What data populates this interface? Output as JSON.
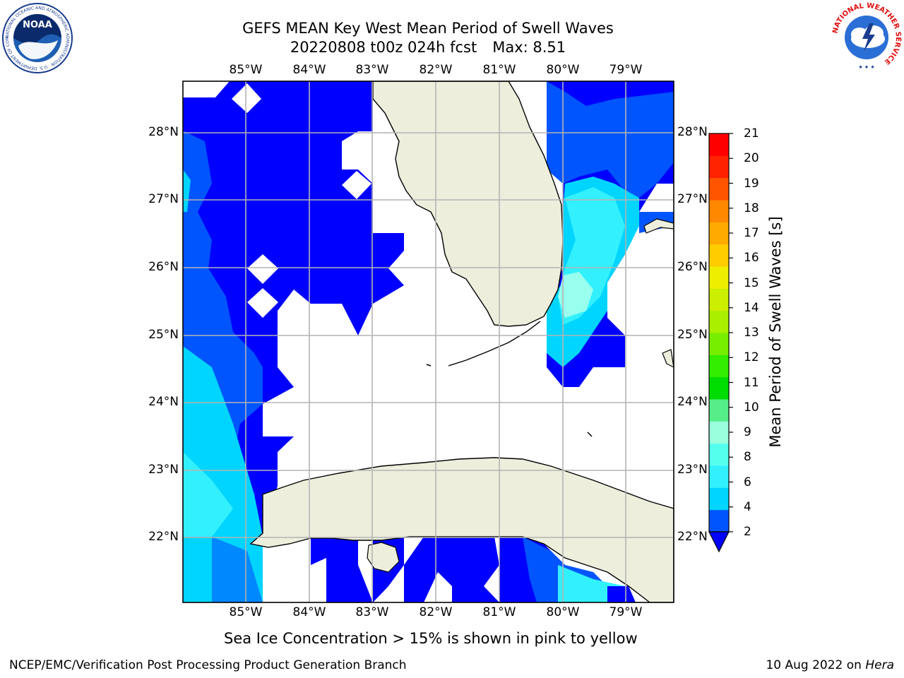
{
  "title": {
    "line1": "GEFS MEAN Key West Mean Period of Swell Waves",
    "line2_run": "20220808 t00z 024h fcst",
    "line2_max": "Max: 8.51"
  },
  "logos": {
    "left": {
      "name": "NOAA",
      "text": "NOAA",
      "ring_text": "NATIONAL OCEANIC AND ATMOSPHERIC ADMINISTRATION · U.S. DEPARTMENT OF COMMERCE"
    },
    "right": {
      "name": "National Weather Service",
      "ring_text": "NATIONAL WEATHER SERVICE"
    }
  },
  "map": {
    "lon_labels": [
      "85°W",
      "84°W",
      "83°W",
      "82°W",
      "81°W",
      "80°W",
      "79°W"
    ],
    "lat_labels": [
      "28°N",
      "27°N",
      "26°N",
      "25°N",
      "24°N",
      "23°N",
      "22°N"
    ],
    "extent": {
      "lon_min": -86.0,
      "lon_max": -78.3,
      "lat_min": 21.0,
      "lat_max": 28.75
    },
    "land_color": "#eeeedd",
    "ocean_no_data_color": "#ffffff",
    "grid_color": "#b4b4b4"
  },
  "colorbar": {
    "label": "Mean Period of Swell Waves [s]",
    "ticks": [
      "2",
      "4",
      "6",
      "8",
      "9",
      "10",
      "11",
      "12",
      "13",
      "14",
      "15",
      "16",
      "17",
      "18",
      "19",
      "20",
      "21"
    ],
    "colors": [
      "#0055ff",
      "#00d5ff",
      "#33f0ff",
      "#55ffee",
      "#99ffdd",
      "#55ee88",
      "#00dd00",
      "#33ee00",
      "#77ee00",
      "#aaee00",
      "#ccee00",
      "#eeee00",
      "#ffcc00",
      "#ffaa00",
      "#ff8800",
      "#ff5500",
      "#ff2200",
      "#ff0000"
    ],
    "under_color": "#0000ff"
  },
  "notes": {
    "sea_ice": "Sea Ice Concentration > 15% is shown in pink to yellow"
  },
  "footer": {
    "left": "NCEP/EMC/Verification Post Processing Product Generation Branch",
    "right_date": "10 Aug 2022 on",
    "right_host": "Hera"
  }
}
